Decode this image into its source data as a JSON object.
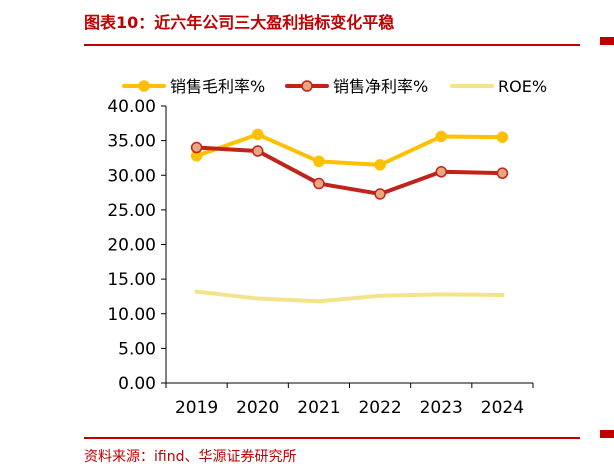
{
  "header": {
    "title": "图表10：近六年公司三大盈利指标变化平稳"
  },
  "footer": {
    "source": "资料来源：ifind、华源证券研究所"
  },
  "colors": {
    "accent": "#c00000",
    "gross_margin": "#ffc000",
    "net_margin": "#c1221a",
    "net_margin_marker": "#e7a780",
    "roe": "#f5e38a"
  },
  "chart_data": {
    "type": "line",
    "title": "",
    "xlabel": "",
    "ylabel": "",
    "x": [
      "2019",
      "2020",
      "2021",
      "2022",
      "2023",
      "2024"
    ],
    "ylim": [
      0,
      40
    ],
    "y_ticks": [
      "0.00",
      "5.00",
      "10.00",
      "15.00",
      "20.00",
      "25.00",
      "30.00",
      "35.00",
      "40.00"
    ],
    "legend_position": "top",
    "grid": false,
    "series": [
      {
        "name": "销售毛利率%",
        "values": [
          32.8,
          35.9,
          32.0,
          31.5,
          35.6,
          35.5
        ],
        "markers": true
      },
      {
        "name": "销售净利率%",
        "values": [
          34.0,
          33.5,
          28.8,
          27.3,
          30.5,
          30.3
        ],
        "markers": true
      },
      {
        "name": "ROE%",
        "values": [
          13.2,
          12.2,
          11.8,
          12.6,
          12.8,
          12.7
        ],
        "markers": false
      }
    ]
  }
}
